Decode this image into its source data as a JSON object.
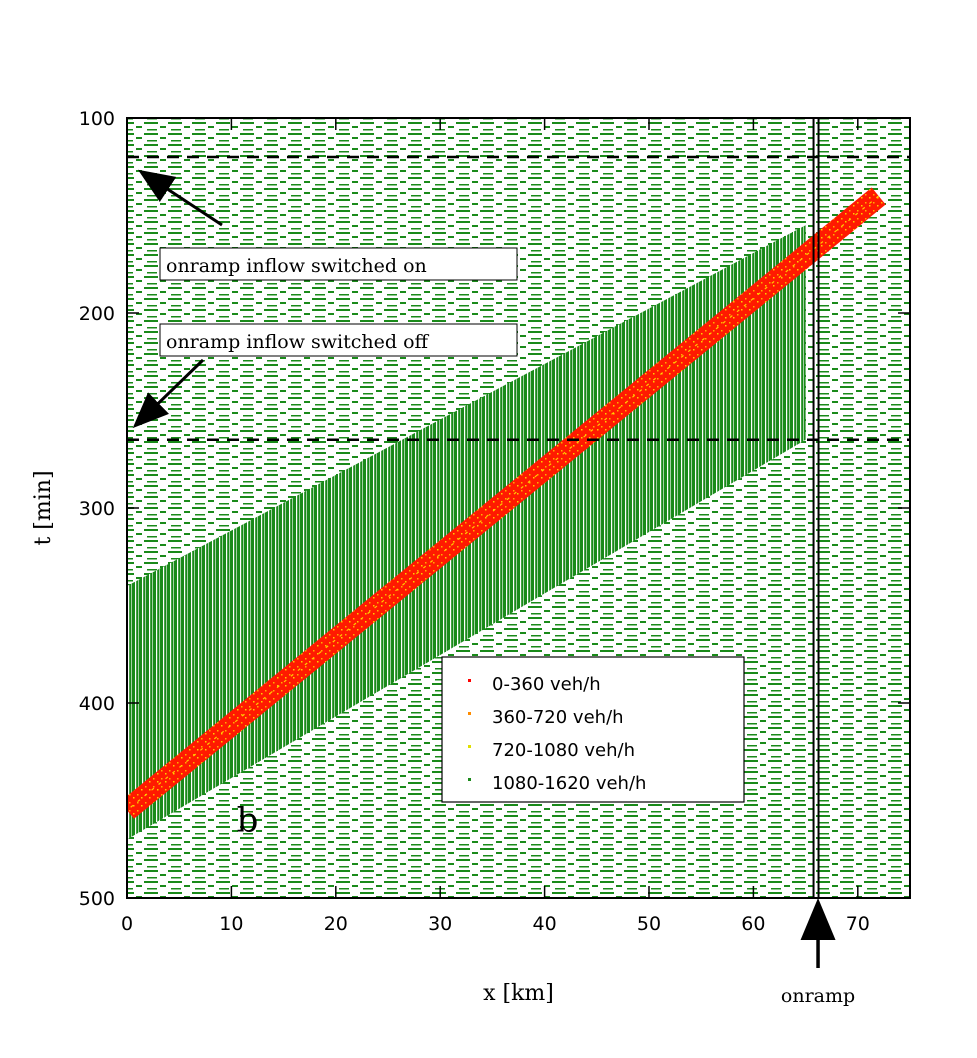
{
  "chart_data": {
    "type": "heatmap",
    "xlabel": "x [km]",
    "ylabel": "t [min]",
    "xlim": [
      0,
      75
    ],
    "ylim": [
      100,
      500
    ],
    "y_inverted": true,
    "x_ticks": [
      0,
      10,
      20,
      30,
      40,
      50,
      60,
      70
    ],
    "y_ticks": [
      100,
      200,
      300,
      400,
      500
    ],
    "panel_label": "b",
    "legend": {
      "placement": "bottom-right",
      "entries": [
        {
          "label": "0-360 veh/h",
          "color": "#ff0000"
        },
        {
          "label": "360-720 veh/h",
          "color": "#ff8c00"
        },
        {
          "label": "720-1080 veh/h",
          "color": "#e0e000"
        },
        {
          "label": "1080-1620 veh/h",
          "color": "#1a8a1a"
        }
      ]
    },
    "horizontal_lines": [
      {
        "t": 120,
        "style": "dashed"
      },
      {
        "t": 265,
        "style": "dashed"
      }
    ],
    "onramp": {
      "x": 66,
      "label": "onramp"
    },
    "annotations": [
      {
        "text": "onramp inflow switched on",
        "points_to_t": 120
      },
      {
        "text": "onramp inflow switched off",
        "points_to_t": 265
      }
    ],
    "jam_band": {
      "start": {
        "x": 72,
        "t": 140
      },
      "end": {
        "x": 0,
        "t": 455
      },
      "color": "#ff0000"
    },
    "congested_region": {
      "upstream_front": [
        [
          0,
          340
        ],
        [
          65,
          155
        ]
      ],
      "downstream_front": [
        [
          0,
          470
        ],
        [
          65,
          265
        ]
      ],
      "color": "#1a8a1a"
    }
  }
}
